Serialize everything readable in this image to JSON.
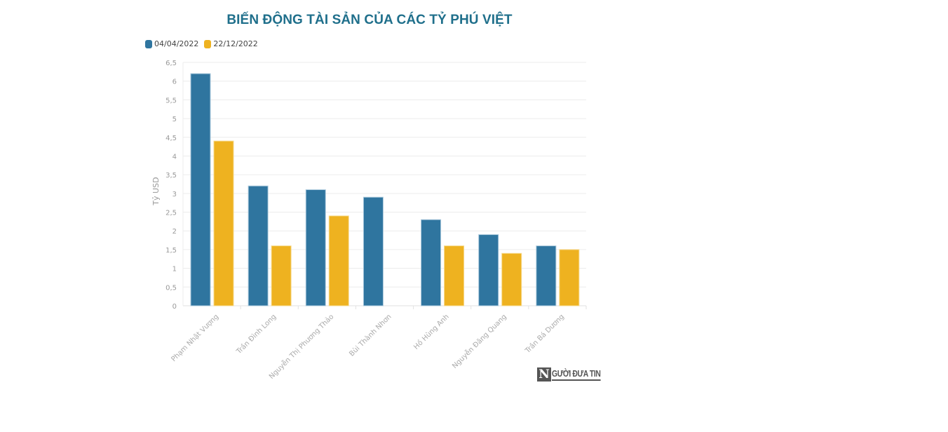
{
  "title": "BIẾN ĐỘNG TÀI SẢN CỦA CÁC TỶ PHÚ VIỆT",
  "legend": [
    {
      "label": "04/04/2022",
      "color": "#2f759f"
    },
    {
      "label": "22/12/2022",
      "color": "#eeb220"
    }
  ],
  "logo": {
    "mark": "N",
    "text": "GƯỜI ĐƯA TIN"
  },
  "chart_data": {
    "type": "bar",
    "title": "BIẾN ĐỘNG TÀI SẢN CỦA CÁC TỶ PHÚ VIỆT",
    "xlabel": "",
    "ylabel": "Tỷ USD",
    "ylim": [
      0,
      6.5
    ],
    "yticks": [
      "0",
      "0,5",
      "1",
      "1,5",
      "2",
      "2,5",
      "3",
      "3,5",
      "4",
      "4,5",
      "5",
      "5,5",
      "6",
      "6,5"
    ],
    "grid": true,
    "legend_position": "top-left",
    "categories": [
      "Phạm Nhật Vượng",
      "Trần Đình Long",
      "Nguyễn Thị Phương Thảo",
      "Bùi Thành Nhơn",
      "Hồ Hùng Anh",
      "Nguyễn Đăng Quang",
      "Trần Bá Dương"
    ],
    "series": [
      {
        "name": "04/04/2022",
        "color": "#2f759f",
        "values": [
          6.2,
          3.2,
          3.1,
          2.9,
          2.3,
          1.9,
          1.6
        ]
      },
      {
        "name": "22/12/2022",
        "color": "#eeb220",
        "values": [
          4.4,
          1.6,
          2.4,
          null,
          1.6,
          1.4,
          1.5
        ]
      }
    ]
  }
}
